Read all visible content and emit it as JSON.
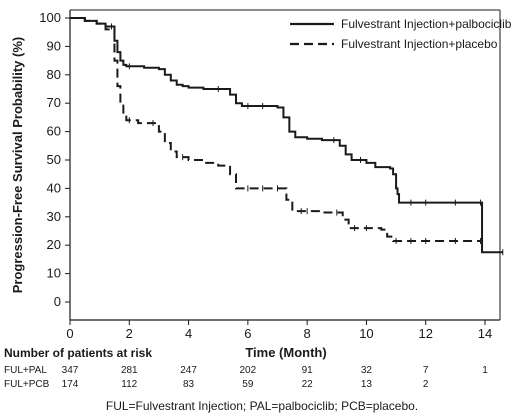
{
  "chart_data": {
    "type": "line",
    "title": "",
    "xlabel": "Time (Month)",
    "ylabel": "Progression-Free Survival Probability (%)",
    "xlim": [
      0,
      15
    ],
    "ylim": [
      0,
      100
    ],
    "x_ticks": [
      "0",
      "2",
      "4",
      "6",
      "8",
      "10",
      "12",
      "14"
    ],
    "y_ticks": [
      "0",
      "10",
      "20",
      "30",
      "40",
      "50",
      "60",
      "70",
      "80",
      "90",
      "100"
    ],
    "grid": false,
    "legend_position": "top-right",
    "series": [
      {
        "name": "Fulvestrant Injection+palbociclib",
        "style": "solid",
        "color": "#1a1a1a",
        "x": [
          0,
          0.5,
          0.9,
          1.2,
          1.4,
          1.5,
          1.6,
          1.7,
          1.8,
          1.9,
          2.0,
          2.5,
          3.0,
          3.2,
          3.4,
          3.6,
          3.8,
          4.0,
          4.5,
          5.0,
          5.4,
          5.6,
          5.8,
          6.0,
          6.5,
          7.0,
          7.2,
          7.4,
          7.6,
          8.0,
          8.5,
          8.9,
          9.1,
          9.3,
          9.5,
          9.8,
          10.0,
          10.3,
          10.8,
          10.9,
          11.0,
          11.05,
          11.1,
          11.5,
          12.0,
          13.0,
          13.85,
          13.9,
          14.6
        ],
        "y": [
          100,
          99,
          98,
          97,
          97,
          92,
          88,
          85,
          83.5,
          83,
          83,
          82.5,
          82,
          80,
          78,
          76.5,
          76,
          75.5,
          75,
          75,
          73,
          70,
          69,
          69,
          69,
          68.5,
          65,
          60,
          58,
          57.5,
          57,
          57,
          55,
          52,
          50,
          50,
          49,
          47.5,
          47,
          45,
          40,
          38,
          35,
          35,
          35,
          35,
          35,
          17.5,
          17.5
        ]
      },
      {
        "name": "Fulvestrant Injection+placebo",
        "style": "dashed",
        "color": "#1a1a1a",
        "x": [
          0,
          0.5,
          0.9,
          1.2,
          1.5,
          1.6,
          1.7,
          1.8,
          1.9,
          2.0,
          2.3,
          2.8,
          3.0,
          3.2,
          3.4,
          3.6,
          3.8,
          4.0,
          4.5,
          5.0,
          5.4,
          5.6,
          6.0,
          6.5,
          7.0,
          7.3,
          7.5,
          7.8,
          8.0,
          8.5,
          9.0,
          9.2,
          9.4,
          9.6,
          10.0,
          10.5,
          10.7,
          10.9,
          11.0,
          11.5,
          12.0,
          13.0,
          13.85
        ],
        "y": [
          100,
          99,
          98,
          96,
          85,
          76,
          70,
          66,
          64,
          64,
          63,
          63,
          60,
          56,
          53,
          51,
          51,
          50,
          49,
          48,
          45,
          40,
          40,
          40,
          40,
          36,
          32,
          32,
          32,
          31.5,
          31.5,
          29,
          26,
          26,
          26,
          25.5,
          23,
          21.5,
          21.5,
          21.5,
          21.5,
          21.5,
          21.5
        ]
      }
    ],
    "risk_table": {
      "title": "Number of patients at risk",
      "times": [
        0,
        2,
        4,
        6,
        8,
        10,
        12,
        14
      ],
      "rows": [
        {
          "label": "FUL+PAL",
          "counts": [
            "347",
            "281",
            "247",
            "202",
            "91",
            "32",
            "7",
            "1"
          ]
        },
        {
          "label": "FUL+PCB",
          "counts": [
            "174",
            "112",
            "83",
            "59",
            "22",
            "13",
            "2",
            ""
          ]
        }
      ]
    },
    "footnote": "FUL=Fulvestrant Injection; PAL=palbociclib; PCB=placebo."
  }
}
